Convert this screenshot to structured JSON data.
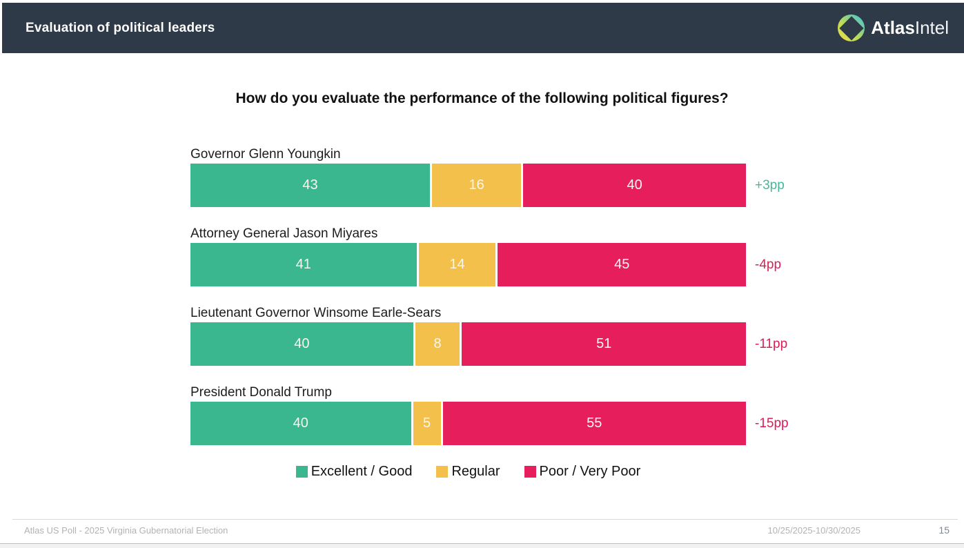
{
  "header": {
    "title": "Evaluation of political leaders",
    "brand_bold": "Atlas",
    "brand_light": "Intel"
  },
  "chart_data": {
    "type": "bar",
    "stacked": true,
    "orientation": "horizontal",
    "title": "How do you evaluate the performance of the following political figures?",
    "categories": [
      "Governor Glenn Youngkin",
      "Attorney General Jason Miyares",
      "Lieutenant Governor Winsome Earle-Sears",
      "President Donald Trump"
    ],
    "series": [
      {
        "name": "Excellent / Good",
        "color": "#3bb78f",
        "values": [
          43,
          41,
          40,
          40
        ]
      },
      {
        "name": "Regular",
        "color": "#f3c14b",
        "values": [
          16,
          14,
          8,
          5
        ]
      },
      {
        "name": "Poor / Very Poor",
        "color": "#e61f5c",
        "values": [
          40,
          45,
          51,
          55
        ]
      }
    ],
    "net_labels": [
      {
        "text": "+3pp",
        "sentiment": "positive"
      },
      {
        "text": "-4pp",
        "sentiment": "negative"
      },
      {
        "text": "-11pp",
        "sentiment": "negative"
      },
      {
        "text": "-15pp",
        "sentiment": "negative"
      }
    ],
    "xlim": [
      0,
      100
    ],
    "legend_position": "bottom",
    "grid": false
  },
  "colors": {
    "header_bg": "#2e3a48",
    "net_positive": "#45b899",
    "net_negative": "#d81e56"
  },
  "footer": {
    "source": "Atlas US Poll - 2025 Virginia Gubernatorial Election",
    "date_range": "10/25/2025-10/30/2025",
    "page_number": "15"
  }
}
